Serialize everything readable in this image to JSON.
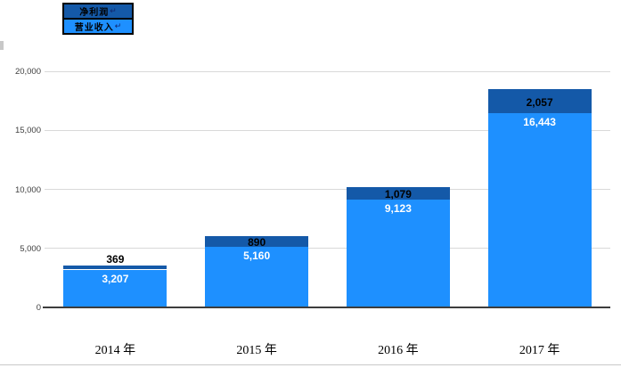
{
  "legend": {
    "items": [
      {
        "label": "净利润",
        "return_mark": "↵",
        "color": "#1459A8"
      },
      {
        "label": "营业收入",
        "return_mark": "↵",
        "color": "#1E90FF"
      }
    ]
  },
  "chart_data": {
    "type": "bar",
    "stacked": true,
    "title": "",
    "xlabel": "",
    "ylabel": "",
    "categories": [
      "2014 年",
      "2015 年",
      "2016 年",
      "2017 年"
    ],
    "series": [
      {
        "name": "营业收入",
        "color": "#1E90FF",
        "values": [
          3207,
          5160,
          9123,
          16443
        ],
        "labels": [
          "3,207",
          "5,160",
          "9,123",
          "16,443"
        ]
      },
      {
        "name": "净利润",
        "color": "#1459A8",
        "values": [
          369,
          890,
          1079,
          2057
        ],
        "labels": [
          "369",
          "890",
          "1,079",
          "2,057"
        ]
      }
    ],
    "ylim": [
      0,
      20000
    ],
    "ytick_interval": 5000,
    "yticks": [
      "0",
      "5,000",
      "10,000",
      "15,000",
      "20,000"
    ],
    "grid": true,
    "legend_position": "top-left",
    "colors": {
      "gridline": "#d9d9d9",
      "axis": "#3d3d3d"
    }
  }
}
